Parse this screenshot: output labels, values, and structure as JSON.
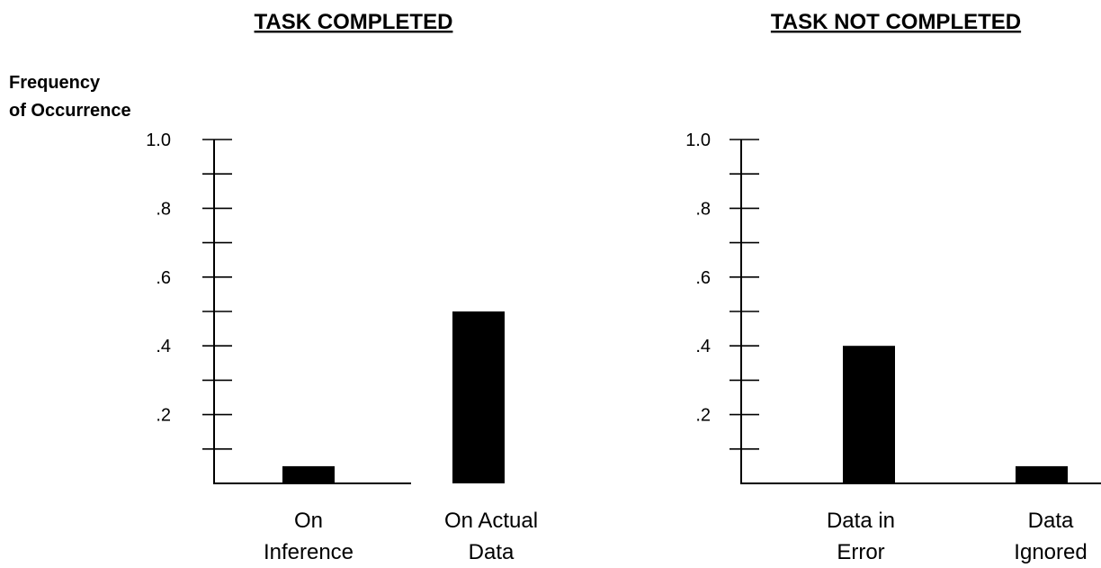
{
  "chart_data": [
    {
      "type": "bar",
      "title": "TASK COMPLETED",
      "ylabel": [
        "Frequency",
        "of Occurrence"
      ],
      "categories": [
        [
          "On",
          "Inference"
        ],
        [
          "On Actual",
          "Data"
        ]
      ],
      "values": [
        0.05,
        0.5
      ],
      "ylim": [
        0,
        1.0
      ],
      "yticks": [
        0.2,
        0.4,
        0.6,
        0.8,
        1.0
      ],
      "ytick_labels": [
        ".2",
        ".4",
        ".6",
        ".8",
        "1.0"
      ],
      "minor_ticks": [
        0.1,
        0.3,
        0.5,
        0.7,
        0.9
      ],
      "bar_color": "#000000"
    },
    {
      "type": "bar",
      "title": "TASK NOT COMPLETED",
      "categories": [
        [
          "Data in",
          "Error"
        ],
        [
          "Data",
          "Ignored"
        ]
      ],
      "values": [
        0.4,
        0.05
      ],
      "ylim": [
        0,
        1.0
      ],
      "yticks": [
        0.2,
        0.4,
        0.6,
        0.8,
        1.0
      ],
      "ytick_labels": [
        ".2",
        ".4",
        ".6",
        ".8",
        "1.0"
      ],
      "minor_ticks": [
        0.1,
        0.3,
        0.5,
        0.7,
        0.9
      ],
      "bar_color": "#000000"
    }
  ]
}
